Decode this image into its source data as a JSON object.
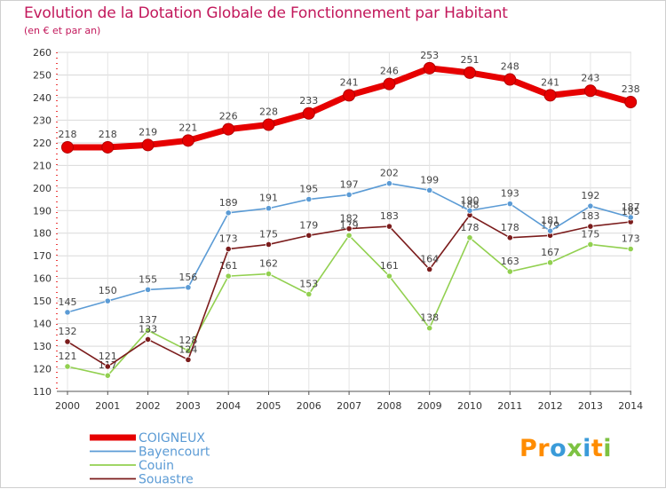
{
  "title": "Evolution de la Dotation Globale de Fonctionnement par Habitant",
  "subtitle": "(en € et par an)",
  "brand": {
    "text": "Proxiti",
    "colors": [
      "#ff8c00",
      "#ff8c00",
      "#3a9bd9",
      "#7dc242",
      "#3a9bd9",
      "#ff8c00",
      "#7dc242"
    ]
  },
  "chart_data": {
    "type": "line",
    "x": [
      2000,
      2001,
      2002,
      2003,
      2004,
      2005,
      2006,
      2007,
      2008,
      2009,
      2010,
      2011,
      2012,
      2013,
      2014
    ],
    "ylim": [
      110,
      260
    ],
    "yticks": [
      110,
      120,
      130,
      140,
      150,
      160,
      170,
      180,
      190,
      200,
      210,
      220,
      230,
      240,
      250,
      260
    ],
    "grid": true,
    "legend_position": "bottom-left",
    "series": [
      {
        "name": "COIGNEUX",
        "color": "#e60000",
        "values": [
          218,
          218,
          219,
          221,
          226,
          228,
          233,
          241,
          246,
          253,
          251,
          248,
          241,
          243,
          238
        ]
      },
      {
        "name": "Bayencourt",
        "color": "#5b9bd5",
        "values": [
          145,
          150,
          155,
          156,
          189,
          191,
          195,
          197,
          202,
          199,
          190,
          193,
          181,
          192,
          187
        ]
      },
      {
        "name": "Couin",
        "color": "#92d050",
        "values": [
          121,
          117,
          137,
          128,
          161,
          162,
          153,
          179,
          161,
          138,
          178,
          163,
          167,
          175,
          173
        ]
      },
      {
        "name": "Souastre",
        "color": "#7b1c1c",
        "values": [
          132,
          121,
          133,
          124,
          173,
          175,
          179,
          182,
          183,
          164,
          188,
          178,
          179,
          183,
          185
        ]
      }
    ]
  }
}
